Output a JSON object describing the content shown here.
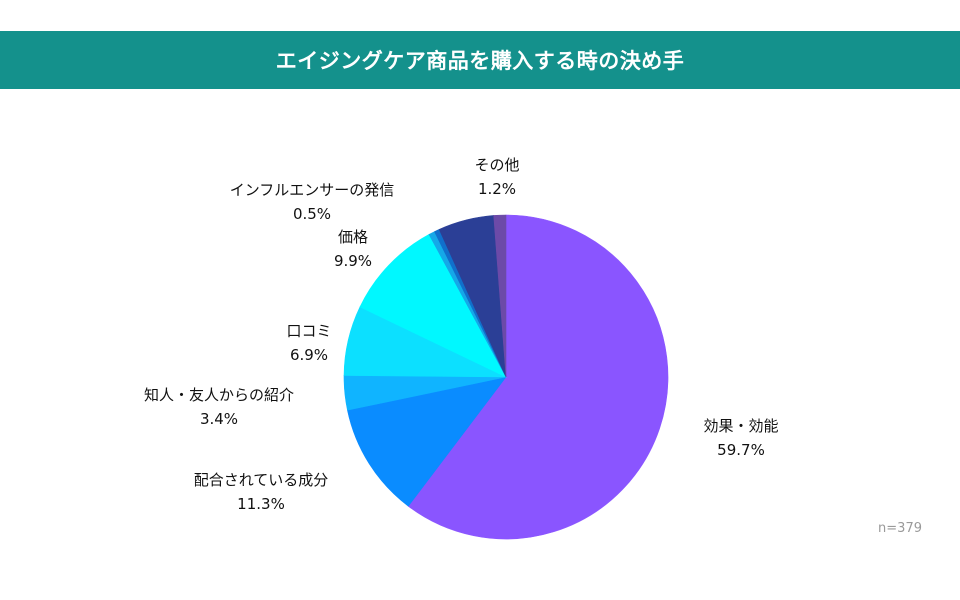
{
  "header": {
    "title": "エイジングケア商品を購入する時の決め手"
  },
  "note": "n=379",
  "chart_data": {
    "type": "pie",
    "title": "エイジングケア商品を購入する時の決め手",
    "unit": "%",
    "start": "12 o'clock",
    "direction": "clockwise",
    "slices": [
      {
        "label": "効果・効能",
        "value": 59.7,
        "value_label": "59.7%",
        "color": "#8a55ff"
      },
      {
        "label": "配合されている成分",
        "value": 11.3,
        "value_label": "11.3%",
        "color": "#0a8cff"
      },
      {
        "label": "知人・友人からの紹介",
        "value": 3.4,
        "value_label": "3.4%",
        "color": "#10b4ff"
      },
      {
        "label": "口コミ",
        "value": 6.9,
        "value_label": "6.9%",
        "color": "#0ce0ff"
      },
      {
        "label": "価格",
        "value": 9.9,
        "value_label": "9.9%",
        "color": "#00f8ff"
      },
      {
        "label": "",
        "value": 0.6,
        "value_label": "",
        "color": "#15a8e8"
      },
      {
        "label": "インフルエンサーの発信",
        "value": 0.5,
        "value_label": "0.5%",
        "color": "#1070cc"
      },
      {
        "label": "",
        "value": 5.5,
        "value_label": "",
        "color": "#2b3f96"
      },
      {
        "label": "その他",
        "value": 1.2,
        "value_label": "1.2%",
        "color": "#6c4aa8"
      }
    ]
  }
}
